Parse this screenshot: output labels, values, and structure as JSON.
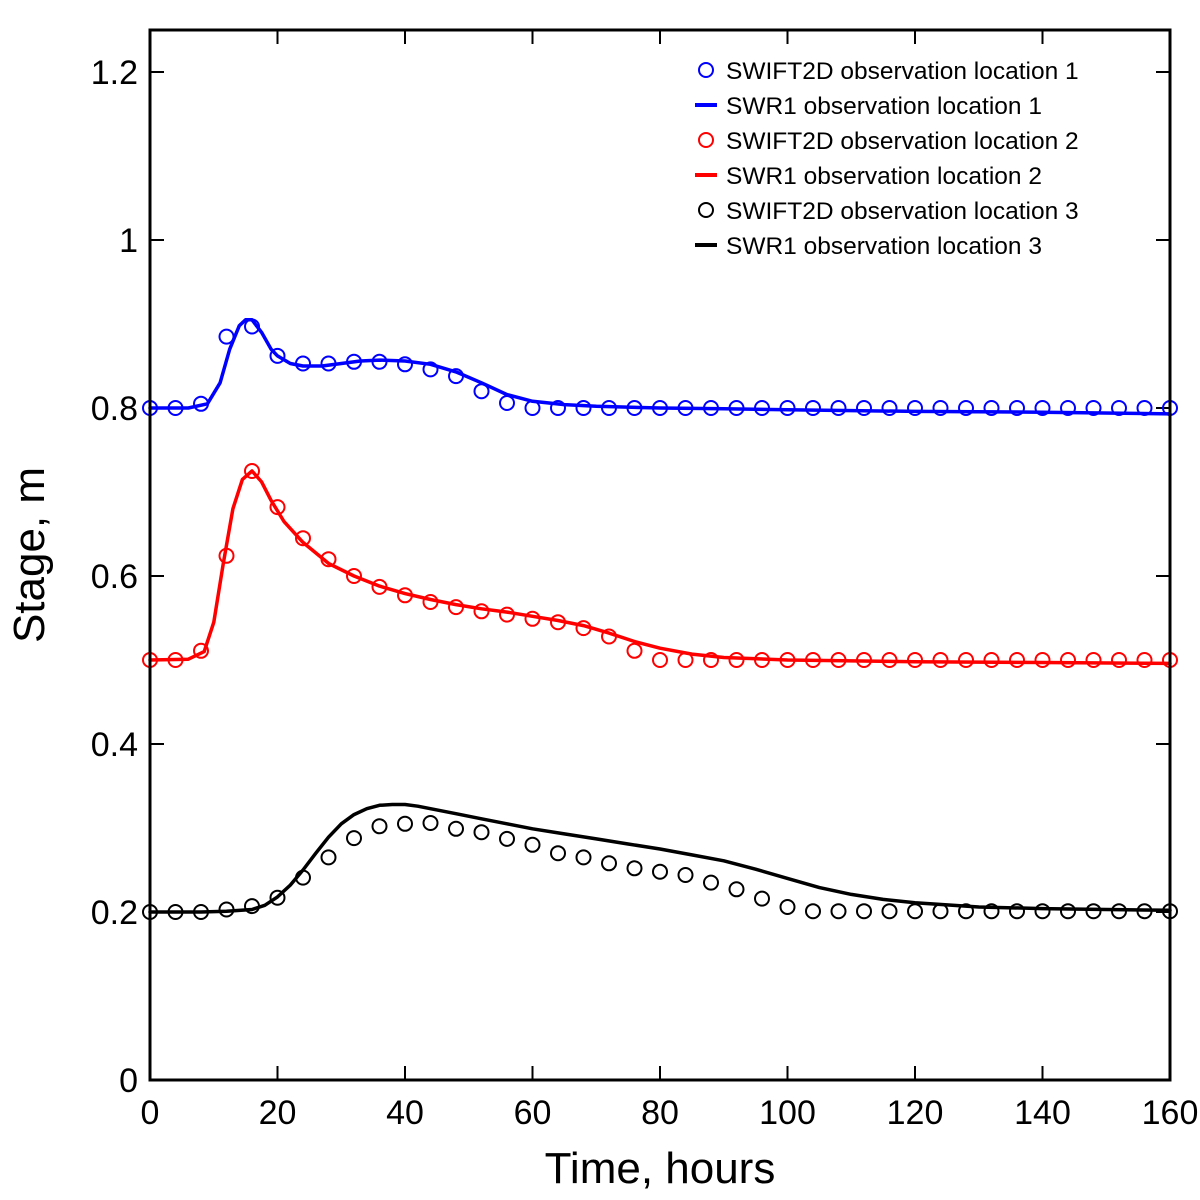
{
  "chart_data": {
    "type": "line",
    "xlabel": "Time, hours",
    "ylabel": "Stage, m",
    "xlim": [
      0,
      160
    ],
    "ylim": [
      0,
      1.25
    ],
    "xticks": [
      {
        "value": 0,
        "label": "0"
      },
      {
        "value": 20,
        "label": "20"
      },
      {
        "value": 40,
        "label": "40"
      },
      {
        "value": 60,
        "label": "60"
      },
      {
        "value": 80,
        "label": "80"
      },
      {
        "value": 100,
        "label": "100"
      },
      {
        "value": 120,
        "label": "120"
      },
      {
        "value": 140,
        "label": "140"
      },
      {
        "value": 160,
        "label": "160"
      }
    ],
    "yticks": [
      {
        "value": 0,
        "label": "0"
      },
      {
        "value": 0.2,
        "label": "0.2"
      },
      {
        "value": 0.4,
        "label": "0.4"
      },
      {
        "value": 0.6,
        "label": "0.6"
      },
      {
        "value": 0.8,
        "label": "0.8"
      },
      {
        "value": 1.0,
        "label": "1"
      },
      {
        "value": 1.2,
        "label": "1.2"
      }
    ],
    "grid": false,
    "legend_position": "top-right",
    "series": [
      {
        "name": "SWIFT2D observation location 1",
        "kind": "markers",
        "color": "#0000ff",
        "x": [
          0,
          4,
          8,
          12,
          16,
          20,
          24,
          28,
          32,
          36,
          40,
          44,
          48,
          52,
          56,
          60,
          64,
          68,
          72,
          76,
          80,
          84,
          88,
          92,
          96,
          100,
          104,
          108,
          112,
          116,
          120,
          124,
          128,
          132,
          136,
          140,
          144,
          148,
          152,
          156,
          160
        ],
        "y": [
          0.8,
          0.8,
          0.805,
          0.885,
          0.897,
          0.862,
          0.853,
          0.853,
          0.855,
          0.855,
          0.852,
          0.846,
          0.838,
          0.82,
          0.806,
          0.8,
          0.8,
          0.8,
          0.8,
          0.8,
          0.8,
          0.8,
          0.8,
          0.8,
          0.8,
          0.8,
          0.8,
          0.8,
          0.8,
          0.8,
          0.8,
          0.8,
          0.8,
          0.8,
          0.8,
          0.8,
          0.8,
          0.8,
          0.8,
          0.8,
          0.8
        ]
      },
      {
        "name": "SWR1 observation location 1",
        "kind": "line",
        "color": "#0000ff",
        "x": [
          0,
          6,
          9,
          11,
          12.5,
          14,
          15,
          16,
          17.5,
          19,
          20,
          22,
          24,
          27,
          30,
          33,
          36,
          40,
          44,
          48,
          52,
          56,
          60,
          65,
          70,
          80,
          90,
          100,
          120,
          140,
          160
        ],
        "y": [
          0.8,
          0.8,
          0.805,
          0.83,
          0.87,
          0.898,
          0.905,
          0.905,
          0.89,
          0.87,
          0.862,
          0.853,
          0.85,
          0.85,
          0.853,
          0.856,
          0.857,
          0.856,
          0.852,
          0.843,
          0.83,
          0.816,
          0.808,
          0.804,
          0.802,
          0.8,
          0.799,
          0.798,
          0.796,
          0.795,
          0.793
        ]
      },
      {
        "name": "SWIFT2D observation location 2",
        "kind": "markers",
        "color": "#ff0000",
        "x": [
          0,
          4,
          8,
          12,
          16,
          20,
          24,
          28,
          32,
          36,
          40,
          44,
          48,
          52,
          56,
          60,
          64,
          68,
          72,
          76,
          80,
          84,
          88,
          92,
          96,
          100,
          104,
          108,
          112,
          116,
          120,
          124,
          128,
          132,
          136,
          140,
          144,
          148,
          152,
          156,
          160
        ],
        "y": [
          0.5,
          0.5,
          0.511,
          0.624,
          0.725,
          0.682,
          0.645,
          0.62,
          0.6,
          0.587,
          0.577,
          0.569,
          0.563,
          0.558,
          0.554,
          0.549,
          0.545,
          0.538,
          0.528,
          0.511,
          0.5,
          0.5,
          0.5,
          0.5,
          0.5,
          0.5,
          0.5,
          0.5,
          0.5,
          0.5,
          0.5,
          0.5,
          0.5,
          0.5,
          0.5,
          0.5,
          0.5,
          0.5,
          0.5,
          0.5,
          0.5
        ]
      },
      {
        "name": "SWR1 observation location 2",
        "kind": "line",
        "color": "#ff0000",
        "x": [
          0,
          6,
          8.5,
          10,
          11.5,
          13,
          14.5,
          16,
          17.5,
          19,
          21,
          24,
          28,
          32,
          36,
          40,
          44,
          48,
          52,
          56,
          60,
          64,
          68,
          72,
          76,
          80,
          85,
          90,
          100,
          120,
          140,
          160
        ],
        "y": [
          0.5,
          0.501,
          0.51,
          0.545,
          0.615,
          0.68,
          0.715,
          0.725,
          0.712,
          0.69,
          0.665,
          0.64,
          0.615,
          0.6,
          0.588,
          0.579,
          0.572,
          0.566,
          0.561,
          0.557,
          0.552,
          0.547,
          0.541,
          0.532,
          0.522,
          0.514,
          0.507,
          0.503,
          0.5,
          0.498,
          0.497,
          0.496
        ]
      },
      {
        "name": "SWIFT2D observation location 3",
        "kind": "markers",
        "color": "#000000",
        "x": [
          0,
          4,
          8,
          12,
          16,
          20,
          24,
          28,
          32,
          36,
          40,
          44,
          48,
          52,
          56,
          60,
          64,
          68,
          72,
          76,
          80,
          84,
          88,
          92,
          96,
          100,
          104,
          108,
          112,
          116,
          120,
          124,
          128,
          132,
          136,
          140,
          144,
          148,
          152,
          156,
          160
        ],
        "y": [
          0.2,
          0.2,
          0.2,
          0.203,
          0.207,
          0.217,
          0.241,
          0.265,
          0.288,
          0.302,
          0.305,
          0.306,
          0.299,
          0.295,
          0.287,
          0.28,
          0.27,
          0.265,
          0.258,
          0.252,
          0.248,
          0.244,
          0.235,
          0.227,
          0.216,
          0.206,
          0.201,
          0.201,
          0.201,
          0.201,
          0.201,
          0.201,
          0.201,
          0.201,
          0.201,
          0.201,
          0.201,
          0.201,
          0.201,
          0.201,
          0.201
        ]
      },
      {
        "name": "SWR1 observation location 3",
        "kind": "line",
        "color": "#000000",
        "x": [
          0,
          8,
          12,
          16,
          18,
          20,
          22,
          24,
          26,
          28,
          30,
          32,
          34,
          36,
          38,
          40,
          42,
          44,
          48,
          52,
          56,
          60,
          65,
          70,
          75,
          80,
          85,
          90,
          95,
          100,
          105,
          110,
          115,
          120,
          130,
          140,
          150,
          160
        ],
        "y": [
          0.2,
          0.2,
          0.201,
          0.203,
          0.208,
          0.218,
          0.232,
          0.25,
          0.27,
          0.289,
          0.305,
          0.316,
          0.323,
          0.327,
          0.328,
          0.328,
          0.326,
          0.323,
          0.317,
          0.311,
          0.305,
          0.299,
          0.293,
          0.287,
          0.281,
          0.275,
          0.268,
          0.261,
          0.251,
          0.24,
          0.229,
          0.221,
          0.215,
          0.211,
          0.206,
          0.204,
          0.203,
          0.202
        ]
      }
    ]
  }
}
